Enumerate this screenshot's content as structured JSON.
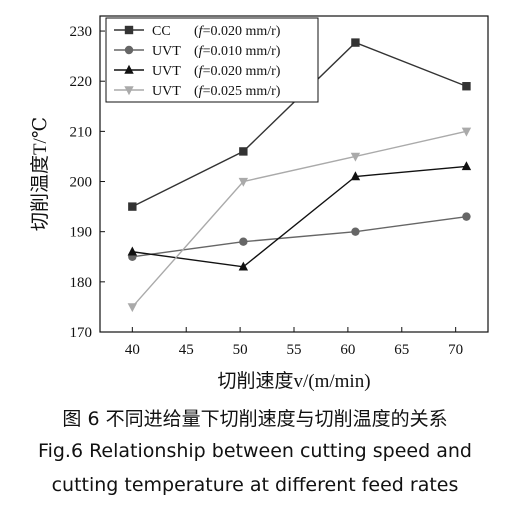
{
  "chart_data": {
    "type": "line",
    "xlabel": "切削速度v/(m/min)",
    "ylabel": "切削温度T/℃",
    "xlim": [
      37,
      73
    ],
    "ylim": [
      170,
      233
    ],
    "xticks": [
      40,
      45,
      50,
      55,
      60,
      65,
      70
    ],
    "yticks": [
      170,
      180,
      190,
      200,
      210,
      220,
      230
    ],
    "grid": false,
    "legend_position": "top-left",
    "series": [
      {
        "name": "CC (f=0.020 mm/r)",
        "label_prefix": "CC",
        "label_feed": "0.020 mm/r",
        "marker": "square",
        "color": "#333333",
        "x": [
          40,
          50.3,
          60.7,
          71
        ],
        "y": [
          195,
          206,
          227.7,
          219
        ]
      },
      {
        "name": "UVT (f=0.010 mm/r)",
        "label_prefix": "UVT",
        "label_feed": "0.010 mm/r",
        "marker": "circle",
        "color": "#666666",
        "x": [
          40,
          50.3,
          60.7,
          71
        ],
        "y": [
          185,
          188,
          190,
          193
        ]
      },
      {
        "name": "UVT (f=0.020 mm/r)",
        "label_prefix": "UVT",
        "label_feed": "0.020 mm/r",
        "marker": "triangle-up",
        "color": "#111111",
        "x": [
          40,
          50.3,
          60.7,
          71
        ],
        "y": [
          186,
          183,
          201,
          203
        ]
      },
      {
        "name": "UVT (f=0.025 mm/r)",
        "label_prefix": "UVT",
        "label_feed": "0.025 mm/r",
        "marker": "triangle-down",
        "color": "#aaaaaa",
        "x": [
          40,
          50.3,
          60.7,
          71
        ],
        "y": [
          175,
          200,
          205,
          210
        ]
      }
    ]
  },
  "caption": {
    "zh": "图 6  不同进给量下切削速度与切削温度的关系",
    "en_line1": "Fig.6  Relationship between cutting speed and",
    "en_line2": "cutting temperature at different feed rates"
  }
}
